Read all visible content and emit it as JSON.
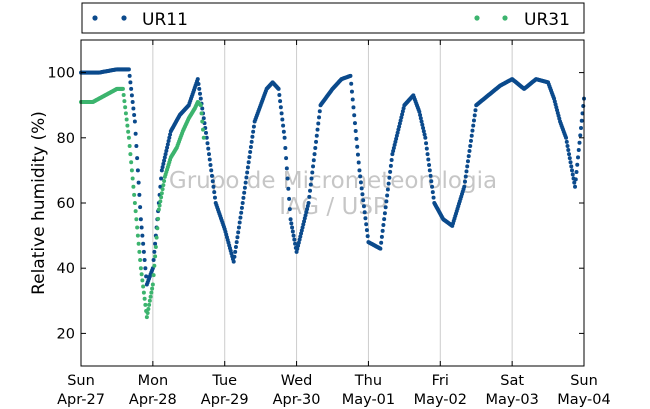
{
  "chart_data": {
    "type": "scatter",
    "ylabel": "Relative humidity (%)",
    "ylim": [
      10,
      110
    ],
    "yticks": [
      20,
      40,
      60,
      80,
      100
    ],
    "xlim": [
      "2025-04-27",
      "2025-05-04"
    ],
    "xticks": [
      {
        "day": "Sun",
        "date": "Apr-27"
      },
      {
        "day": "Mon",
        "date": "Apr-28"
      },
      {
        "day": "Tue",
        "date": "Apr-29"
      },
      {
        "day": "Wed",
        "date": "Apr-30"
      },
      {
        "day": "Thu",
        "date": "May-01"
      },
      {
        "day": "Fri",
        "date": "May-02"
      },
      {
        "day": "Sat",
        "date": "May-03"
      },
      {
        "day": "Sun",
        "date": "May-04"
      }
    ],
    "grid": "vertical",
    "legend_position": "top",
    "watermark": [
      "Grupo de Micrometeorologia",
      "IAG / USP"
    ],
    "series": [
      {
        "name": "UR11",
        "color": "#0b4a8c",
        "x": [
          "2025-04-27 00:00",
          "2025-04-27 06:00",
          "2025-04-27 12:00",
          "2025-04-27 16:00",
          "2025-04-27 18:00",
          "2025-04-27 20:00",
          "2025-04-27 22:00",
          "2025-04-28 00:00",
          "2025-04-28 03:00",
          "2025-04-28 06:00",
          "2025-04-28 09:00",
          "2025-04-28 12:00",
          "2025-04-28 15:00",
          "2025-04-28 18:00",
          "2025-04-28 21:00",
          "2025-04-29 00:00",
          "2025-04-29 03:00",
          "2025-04-29 06:00",
          "2025-04-29 10:00",
          "2025-04-29 14:00",
          "2025-04-29 16:00",
          "2025-04-29 18:00",
          "2025-04-29 20:00",
          "2025-04-29 22:00",
          "2025-04-30 00:00",
          "2025-04-30 04:00",
          "2025-04-30 08:00",
          "2025-04-30 12:00",
          "2025-04-30 15:00",
          "2025-04-30 18:00",
          "2025-04-30 21:00",
          "2025-05-01 00:00",
          "2025-05-01 04:00",
          "2025-05-01 08:00",
          "2025-05-01 12:00",
          "2025-05-01 15:00",
          "2025-05-01 17:00",
          "2025-05-01 19:00",
          "2025-05-01 22:00",
          "2025-05-02 01:00",
          "2025-05-02 04:00",
          "2025-05-02 08:00",
          "2025-05-02 12:00",
          "2025-05-02 16:00",
          "2025-05-02 20:00",
          "2025-05-03 00:00",
          "2025-05-03 04:00",
          "2025-05-03 08:00",
          "2025-05-03 12:00",
          "2025-05-03 14:00",
          "2025-05-03 16:00",
          "2025-05-03 18:00",
          "2025-05-03 21:00",
          "2025-05-04 00:00"
        ],
        "values": [
          100,
          100,
          101,
          101,
          85,
          55,
          35,
          40,
          70,
          82,
          87,
          90,
          98,
          80,
          60,
          52,
          42,
          60,
          85,
          95,
          97,
          95,
          80,
          55,
          45,
          60,
          90,
          95,
          98,
          99,
          70,
          48,
          46,
          75,
          90,
          93,
          88,
          80,
          60,
          55,
          53,
          65,
          90,
          93,
          96,
          98,
          95,
          98,
          97,
          92,
          85,
          80,
          65,
          92
        ]
      },
      {
        "name": "UR31",
        "color": "#3cb46e",
        "x": [
          "2025-04-27 00:00",
          "2025-04-27 04:00",
          "2025-04-27 08:00",
          "2025-04-27 10:00",
          "2025-04-27 12:00",
          "2025-04-27 14:00",
          "2025-04-27 16:00",
          "2025-04-27 17:00",
          "2025-04-27 18:00",
          "2025-04-27 20:00",
          "2025-04-27 22:00",
          "2025-04-28 00:00",
          "2025-04-28 02:00",
          "2025-04-28 04:00",
          "2025-04-28 06:00",
          "2025-04-28 08:00",
          "2025-04-28 10:00",
          "2025-04-28 12:00",
          "2025-04-28 14:00",
          "2025-04-28 15:00",
          "2025-04-28 16:00",
          "2025-04-28 17:00"
        ],
        "values": [
          91,
          91,
          93,
          94,
          95,
          95,
          80,
          70,
          60,
          40,
          25,
          35,
          58,
          68,
          74,
          77,
          82,
          86,
          89,
          91,
          90,
          80
        ]
      }
    ]
  }
}
